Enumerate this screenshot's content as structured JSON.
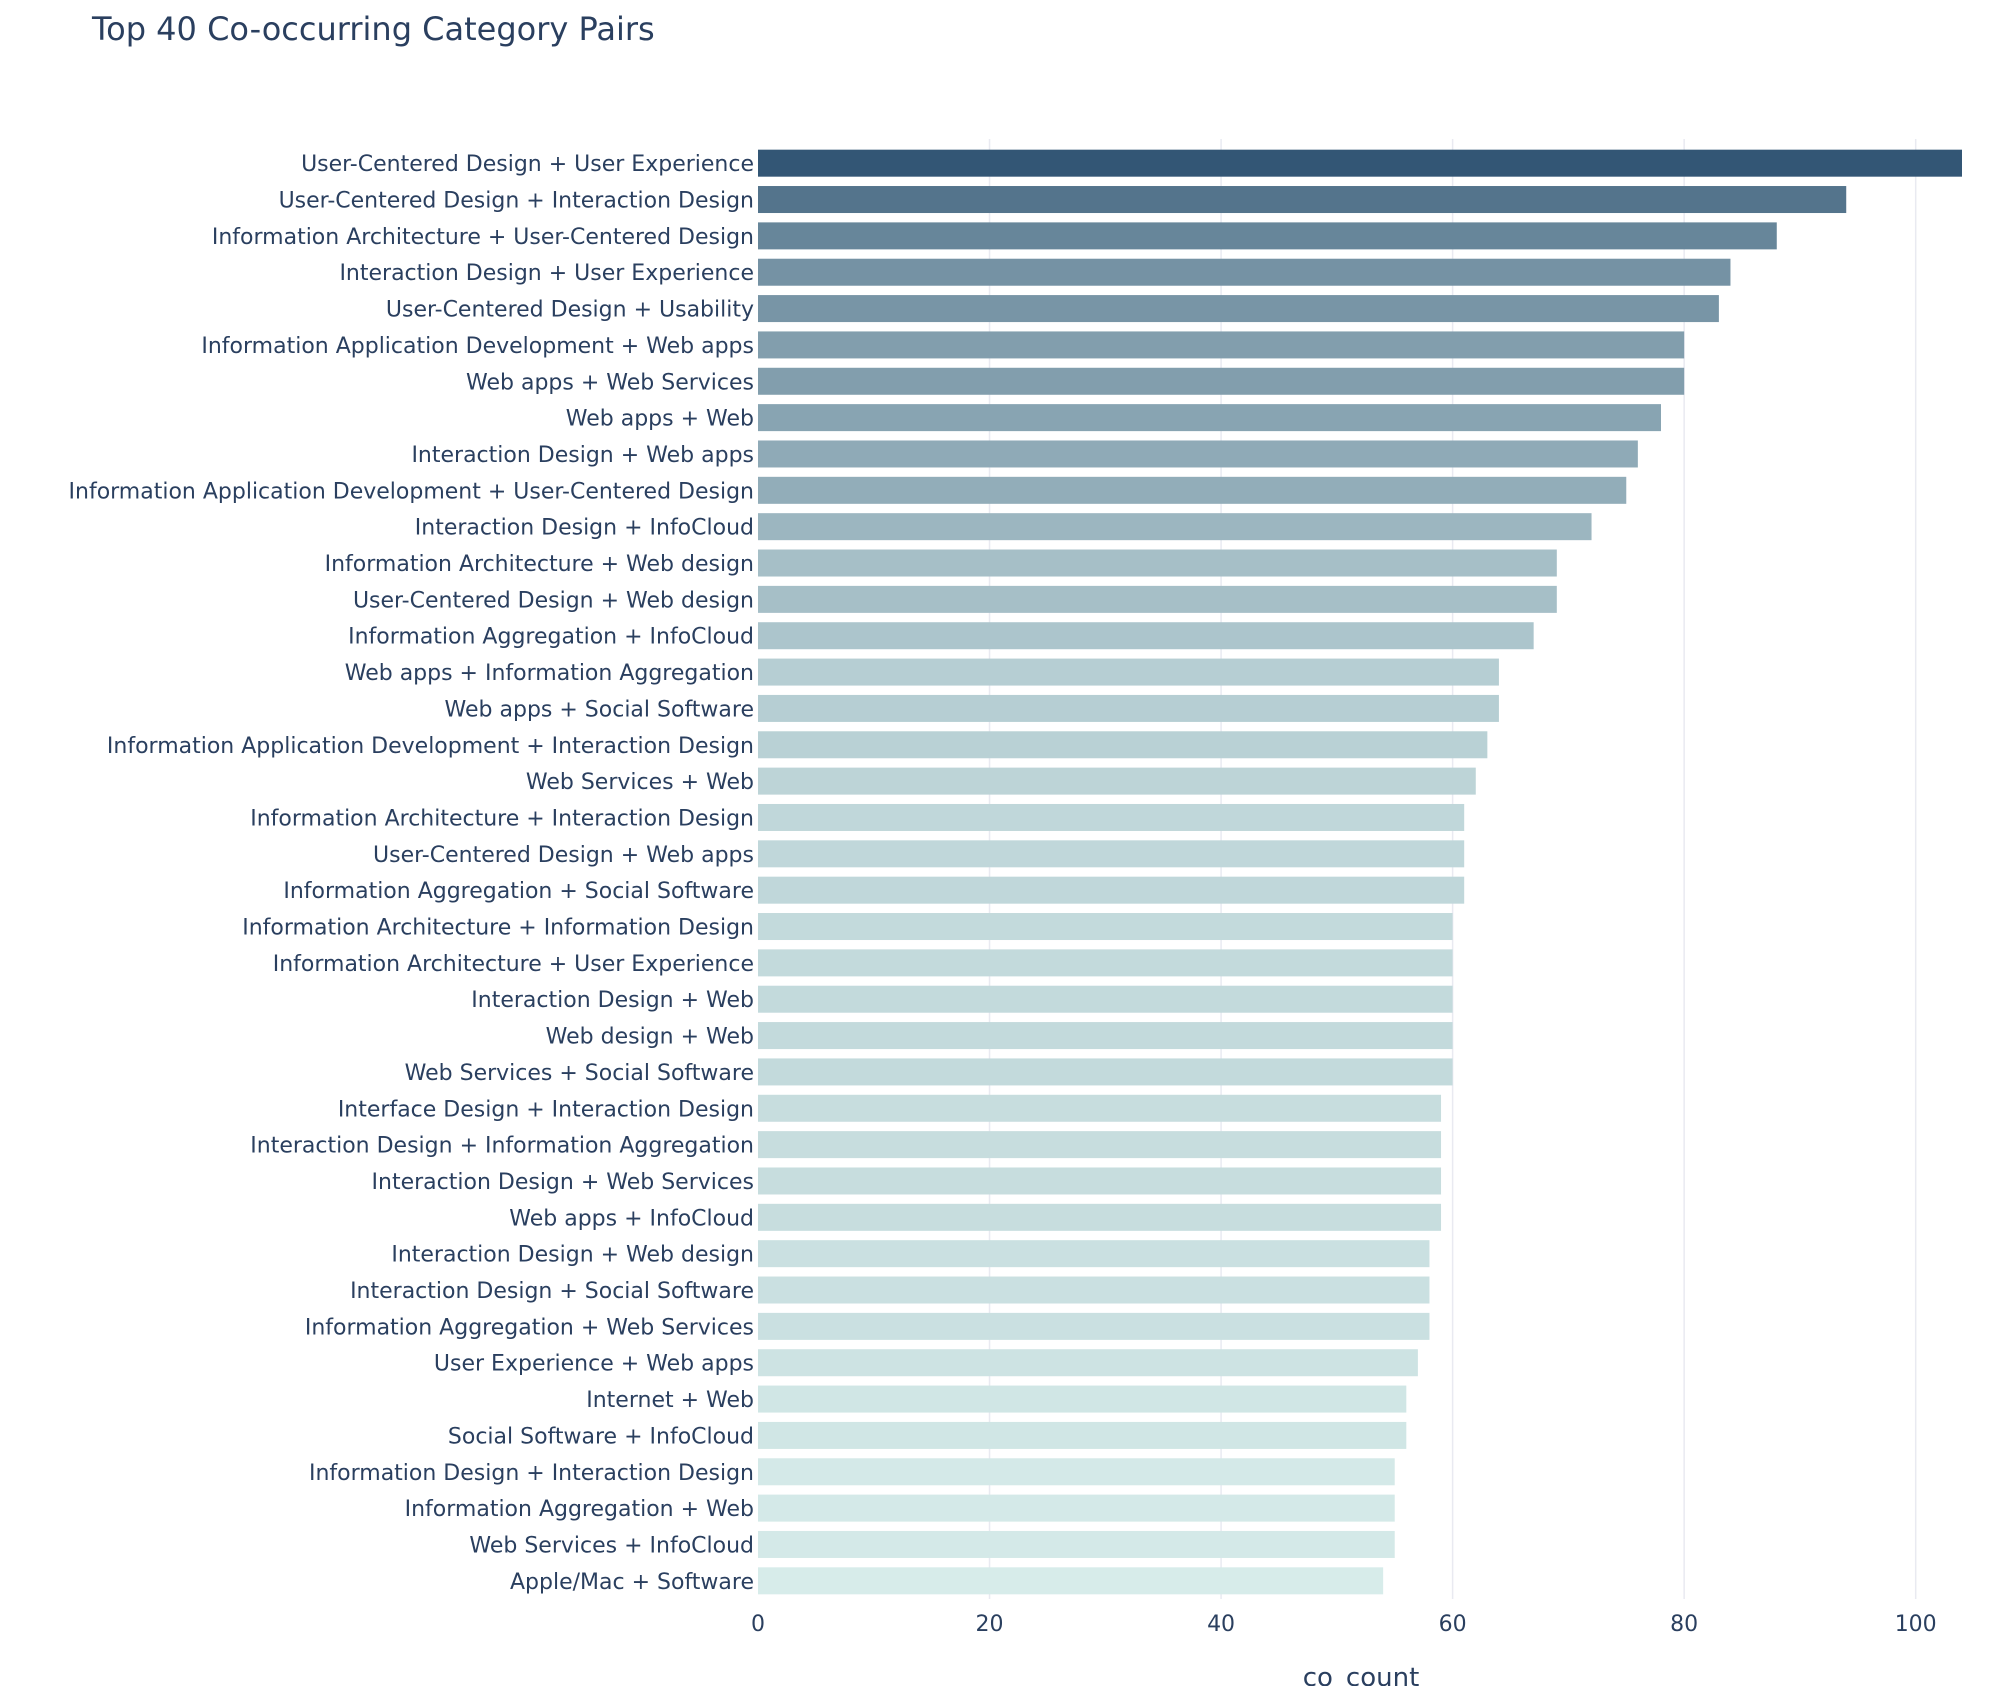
{
  "chart_data": {
    "type": "bar",
    "orientation": "horizontal",
    "title": "Top 40 Co-occurring Category Pairs",
    "xlabel": "co_count",
    "ylabel": "",
    "xlim": [
      0,
      104
    ],
    "xticks": [
      0,
      20,
      40,
      60,
      80,
      100
    ],
    "grid": "x",
    "color_scale": [
      "#d7ecea",
      "#335675"
    ],
    "categories": [
      "User-Centered Design + User Experience",
      "User-Centered Design + Interaction Design",
      "Information Architecture + User-Centered Design",
      "Interaction Design + User Experience",
      "User-Centered Design + Usability",
      "Information Application Development + Web apps",
      "Web apps + Web Services",
      "Web apps + Web",
      "Interaction Design + Web apps",
      "Information Application Development + User-Centered Design",
      "Interaction Design + InfoCloud",
      "Information Architecture + Web design",
      "User-Centered Design + Web design",
      "Information Aggregation + InfoCloud",
      "Web apps + Information Aggregation",
      "Web apps + Social Software",
      "Information Application Development + Interaction Design",
      "Web Services + Web",
      "Information Architecture + Interaction Design",
      "User-Centered Design + Web apps",
      "Information Aggregation + Social Software",
      "Information Architecture + Information Design",
      "Information Architecture + User Experience",
      "Interaction Design + Web",
      "Web design + Web",
      "Web Services + Social Software",
      "Interface Design + Interaction Design",
      "Interaction Design + Information Aggregation",
      "Interaction Design + Web Services",
      "Web apps + InfoCloud",
      "Interaction Design + Web design",
      "Interaction Design + Social Software",
      "Information Aggregation + Web Services",
      "User Experience + Web apps",
      "Internet + Web",
      "Social Software + InfoCloud",
      "Information Design + Interaction Design",
      "Information Aggregation + Web",
      "Web Services + InfoCloud",
      "Apple/Mac + Software"
    ],
    "values": [
      104,
      94,
      88,
      84,
      83,
      80,
      80,
      78,
      76,
      75,
      72,
      69,
      69,
      67,
      64,
      64,
      63,
      62,
      61,
      61,
      61,
      60,
      60,
      60,
      60,
      60,
      59,
      59,
      59,
      59,
      58,
      58,
      58,
      57,
      56,
      56,
      55,
      55,
      55,
      54
    ]
  }
}
